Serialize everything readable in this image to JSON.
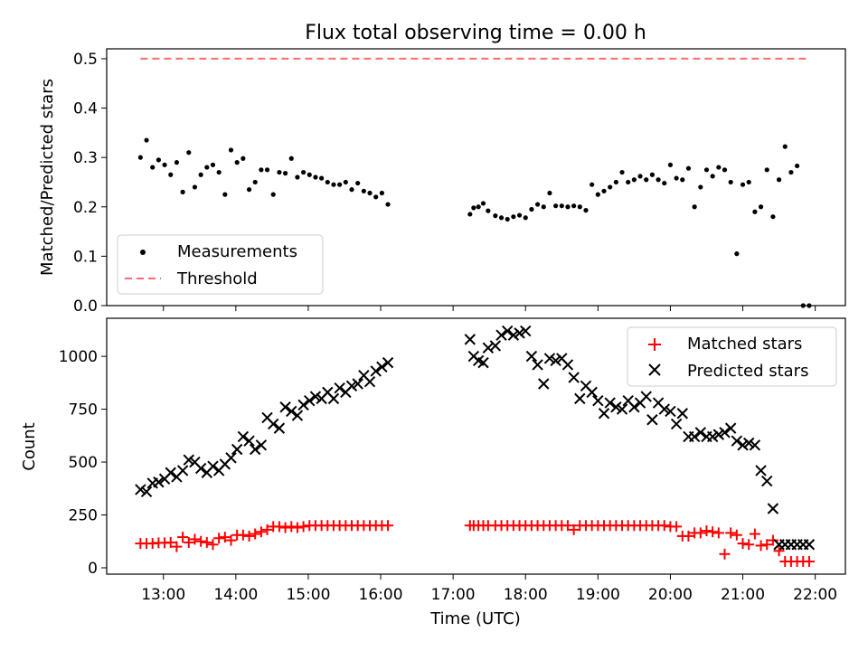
{
  "chart_data": [
    {
      "type": "scatter",
      "title": "Flux total observing time = 0.00 h",
      "xlabel": "",
      "ylabel": "Matched/Predicted stars",
      "xlim": [
        "12:13",
        "22:25"
      ],
      "ylim": [
        0,
        0.52
      ],
      "yticks": [
        0.0,
        0.1,
        0.2,
        0.3,
        0.4,
        0.5
      ],
      "ytick_labels": [
        "0.0",
        "0.1",
        "0.2",
        "0.3",
        "0.4",
        "0.5"
      ],
      "legend": {
        "placement": "lower-left",
        "entries": [
          "Measurements",
          "Threshold"
        ]
      },
      "series": [
        {
          "name": "Measurements",
          "color": "#000000",
          "marker": "dot",
          "x": [
            "12:41",
            "12:46",
            "12:51",
            "12:56",
            "13:01",
            "13:06",
            "13:11",
            "13:16",
            "13:21",
            "13:26",
            "13:31",
            "13:36",
            "13:41",
            "13:46",
            "13:51",
            "13:56",
            "14:01",
            "14:06",
            "14:11",
            "14:16",
            "14:21",
            "14:26",
            "14:31",
            "14:36",
            "14:41",
            "14:46",
            "14:51",
            "14:56",
            "15:01",
            "15:06",
            "15:11",
            "15:16",
            "15:21",
            "15:26",
            "15:31",
            "15:36",
            "15:41",
            "15:46",
            "15:51",
            "15:56",
            "16:01",
            "16:06",
            "17:14",
            "17:17",
            "17:21",
            "17:25",
            "17:29",
            "17:35",
            "17:40",
            "17:45",
            "17:50",
            "17:55",
            "18:00",
            "18:05",
            "18:10",
            "18:15",
            "18:20",
            "18:25",
            "18:30",
            "18:35",
            "18:40",
            "18:45",
            "18:50",
            "18:55",
            "19:00",
            "19:05",
            "19:10",
            "19:15",
            "19:20",
            "19:25",
            "19:30",
            "19:35",
            "19:40",
            "19:45",
            "19:50",
            "19:55",
            "20:00",
            "20:05",
            "20:10",
            "20:15",
            "20:20",
            "20:25",
            "20:30",
            "20:35",
            "20:40",
            "20:45",
            "20:50",
            "20:55",
            "21:00",
            "21:05",
            "21:10",
            "21:15",
            "21:20",
            "21:25",
            "21:30",
            "21:35",
            "21:40",
            "21:45",
            "21:50",
            "21:55"
          ],
          "y": [
            0.3,
            0.335,
            0.28,
            0.295,
            0.285,
            0.265,
            0.29,
            0.23,
            0.31,
            0.24,
            0.265,
            0.28,
            0.285,
            0.27,
            0.225,
            0.315,
            0.29,
            0.298,
            0.235,
            0.25,
            0.275,
            0.275,
            0.225,
            0.27,
            0.268,
            0.298,
            0.26,
            0.27,
            0.265,
            0.26,
            0.258,
            0.25,
            0.245,
            0.245,
            0.25,
            0.235,
            0.248,
            0.232,
            0.228,
            0.22,
            0.228,
            0.205,
            0.185,
            0.198,
            0.2,
            0.207,
            0.192,
            0.182,
            0.178,
            0.175,
            0.18,
            0.183,
            0.178,
            0.195,
            0.205,
            0.2,
            0.228,
            0.202,
            0.202,
            0.2,
            0.202,
            0.2,
            0.193,
            0.245,
            0.225,
            0.232,
            0.24,
            0.25,
            0.27,
            0.25,
            0.255,
            0.262,
            0.255,
            0.265,
            0.255,
            0.248,
            0.285,
            0.258,
            0.255,
            0.278,
            0.2,
            0.24,
            0.275,
            0.262,
            0.28,
            0.275,
            0.25,
            0.105,
            0.245,
            0.25,
            0.19,
            0.2,
            0.275,
            0.18,
            0.255,
            0.322,
            0.27,
            0.283,
            0.0,
            0.0
          ]
        },
        {
          "name": "Threshold",
          "color": "#ff6b6b",
          "style": "dashed",
          "x": [
            "12:41",
            "21:55"
          ],
          "y": [
            0.5,
            0.5
          ]
        }
      ]
    },
    {
      "type": "scatter",
      "title": "",
      "xlabel": "Time (UTC)",
      "ylabel": "Count",
      "xlim": [
        "12:13",
        "22:25"
      ],
      "ylim": [
        -30,
        1180
      ],
      "yticks": [
        0,
        250,
        500,
        750,
        1000
      ],
      "ytick_labels": [
        "0",
        "250",
        "500",
        "750",
        "1000"
      ],
      "xticks": [
        "13:00",
        "14:00",
        "15:00",
        "16:00",
        "17:00",
        "18:00",
        "19:00",
        "20:00",
        "21:00",
        "22:00"
      ],
      "xtick_labels": [
        "13:00",
        "14:00",
        "15:00",
        "16:00",
        "17:00",
        "18:00",
        "19:00",
        "20:00",
        "21:00",
        "22:00"
      ],
      "legend": {
        "placement": "upper-right",
        "entries": [
          "Matched stars",
          "Predicted stars"
        ]
      },
      "series": [
        {
          "name": "Matched stars",
          "color": "#ff0000",
          "marker": "plus",
          "x": [
            "12:41",
            "12:46",
            "12:51",
            "12:56",
            "13:01",
            "13:06",
            "13:11",
            "13:16",
            "13:21",
            "13:26",
            "13:31",
            "13:36",
            "13:41",
            "13:46",
            "13:51",
            "13:56",
            "14:01",
            "14:06",
            "14:11",
            "14:16",
            "14:21",
            "14:26",
            "14:31",
            "14:36",
            "14:41",
            "14:46",
            "14:51",
            "14:56",
            "15:01",
            "15:06",
            "15:11",
            "15:16",
            "15:21",
            "15:26",
            "15:31",
            "15:36",
            "15:41",
            "15:46",
            "15:51",
            "15:56",
            "16:01",
            "16:06",
            "17:14",
            "17:17",
            "17:21",
            "17:25",
            "17:29",
            "17:35",
            "17:40",
            "17:45",
            "17:50",
            "17:55",
            "18:00",
            "18:05",
            "18:10",
            "18:15",
            "18:20",
            "18:25",
            "18:30",
            "18:35",
            "18:40",
            "18:45",
            "18:50",
            "18:55",
            "19:00",
            "19:05",
            "19:10",
            "19:15",
            "19:20",
            "19:25",
            "19:30",
            "19:35",
            "19:40",
            "19:45",
            "19:50",
            "19:55",
            "20:00",
            "20:05",
            "20:10",
            "20:15",
            "20:20",
            "20:25",
            "20:30",
            "20:35",
            "20:40",
            "20:45",
            "20:50",
            "20:55",
            "21:00",
            "21:05",
            "21:10",
            "21:15",
            "21:20",
            "21:25",
            "21:30",
            "21:35",
            "21:40",
            "21:45",
            "21:50",
            "21:55"
          ],
          "y": [
            115,
            115,
            115,
            118,
            118,
            120,
            100,
            145,
            120,
            135,
            125,
            120,
            110,
            140,
            145,
            130,
            155,
            155,
            150,
            160,
            170,
            180,
            195,
            195,
            190,
            195,
            190,
            195,
            200,
            200,
            200,
            200,
            200,
            200,
            200,
            200,
            200,
            200,
            200,
            200,
            200,
            200,
            200,
            200,
            200,
            200,
            200,
            200,
            200,
            200,
            200,
            200,
            200,
            200,
            200,
            200,
            200,
            200,
            200,
            200,
            180,
            200,
            200,
            200,
            200,
            200,
            200,
            200,
            200,
            200,
            200,
            200,
            200,
            200,
            200,
            200,
            195,
            195,
            150,
            150,
            165,
            165,
            175,
            170,
            165,
            65,
            165,
            155,
            115,
            110,
            160,
            105,
            110,
            130,
            80,
            30,
            30,
            30,
            30,
            30
          ]
        },
        {
          "name": "Predicted stars",
          "color": "#000000",
          "marker": "x",
          "x": [
            "12:41",
            "12:46",
            "12:51",
            "12:56",
            "13:01",
            "13:06",
            "13:11",
            "13:16",
            "13:21",
            "13:26",
            "13:31",
            "13:36",
            "13:41",
            "13:46",
            "13:51",
            "13:56",
            "14:01",
            "14:06",
            "14:11",
            "14:16",
            "14:21",
            "14:26",
            "14:31",
            "14:36",
            "14:41",
            "14:46",
            "14:51",
            "14:56",
            "15:01",
            "15:06",
            "15:11",
            "15:16",
            "15:21",
            "15:26",
            "15:31",
            "15:36",
            "15:41",
            "15:46",
            "15:51",
            "15:56",
            "16:01",
            "16:06",
            "17:14",
            "17:17",
            "17:21",
            "17:25",
            "17:29",
            "17:35",
            "17:40",
            "17:45",
            "17:50",
            "17:55",
            "18:00",
            "18:05",
            "18:10",
            "18:15",
            "18:20",
            "18:25",
            "18:30",
            "18:35",
            "18:40",
            "18:45",
            "18:50",
            "18:55",
            "19:00",
            "19:05",
            "19:10",
            "19:15",
            "19:20",
            "19:25",
            "19:30",
            "19:35",
            "19:40",
            "19:45",
            "19:50",
            "19:55",
            "20:00",
            "20:05",
            "20:10",
            "20:15",
            "20:20",
            "20:25",
            "20:30",
            "20:35",
            "20:40",
            "20:45",
            "20:50",
            "20:55",
            "21:00",
            "21:05",
            "21:10",
            "21:15",
            "21:20",
            "21:25",
            "21:30",
            "21:35",
            "21:40",
            "21:45",
            "21:50",
            "21:55"
          ],
          "y": [
            370,
            360,
            400,
            405,
            420,
            450,
            430,
            460,
            510,
            500,
            470,
            450,
            480,
            460,
            490,
            520,
            560,
            620,
            600,
            560,
            580,
            710,
            680,
            660,
            760,
            740,
            720,
            770,
            790,
            810,
            800,
            830,
            800,
            850,
            830,
            860,
            870,
            910,
            880,
            930,
            950,
            970,
            1080,
            1000,
            980,
            970,
            1040,
            1050,
            1100,
            1120,
            1100,
            1110,
            1120,
            1000,
            960,
            870,
            990,
            980,
            990,
            960,
            900,
            800,
            860,
            830,
            790,
            730,
            780,
            760,
            750,
            790,
            760,
            780,
            810,
            700,
            780,
            750,
            740,
            680,
            730,
            620,
            620,
            640,
            620,
            620,
            630,
            640,
            660,
            600,
            580,
            590,
            580,
            460,
            410,
            280,
            110,
            110,
            110,
            110,
            110,
            110
          ]
        }
      ]
    }
  ]
}
